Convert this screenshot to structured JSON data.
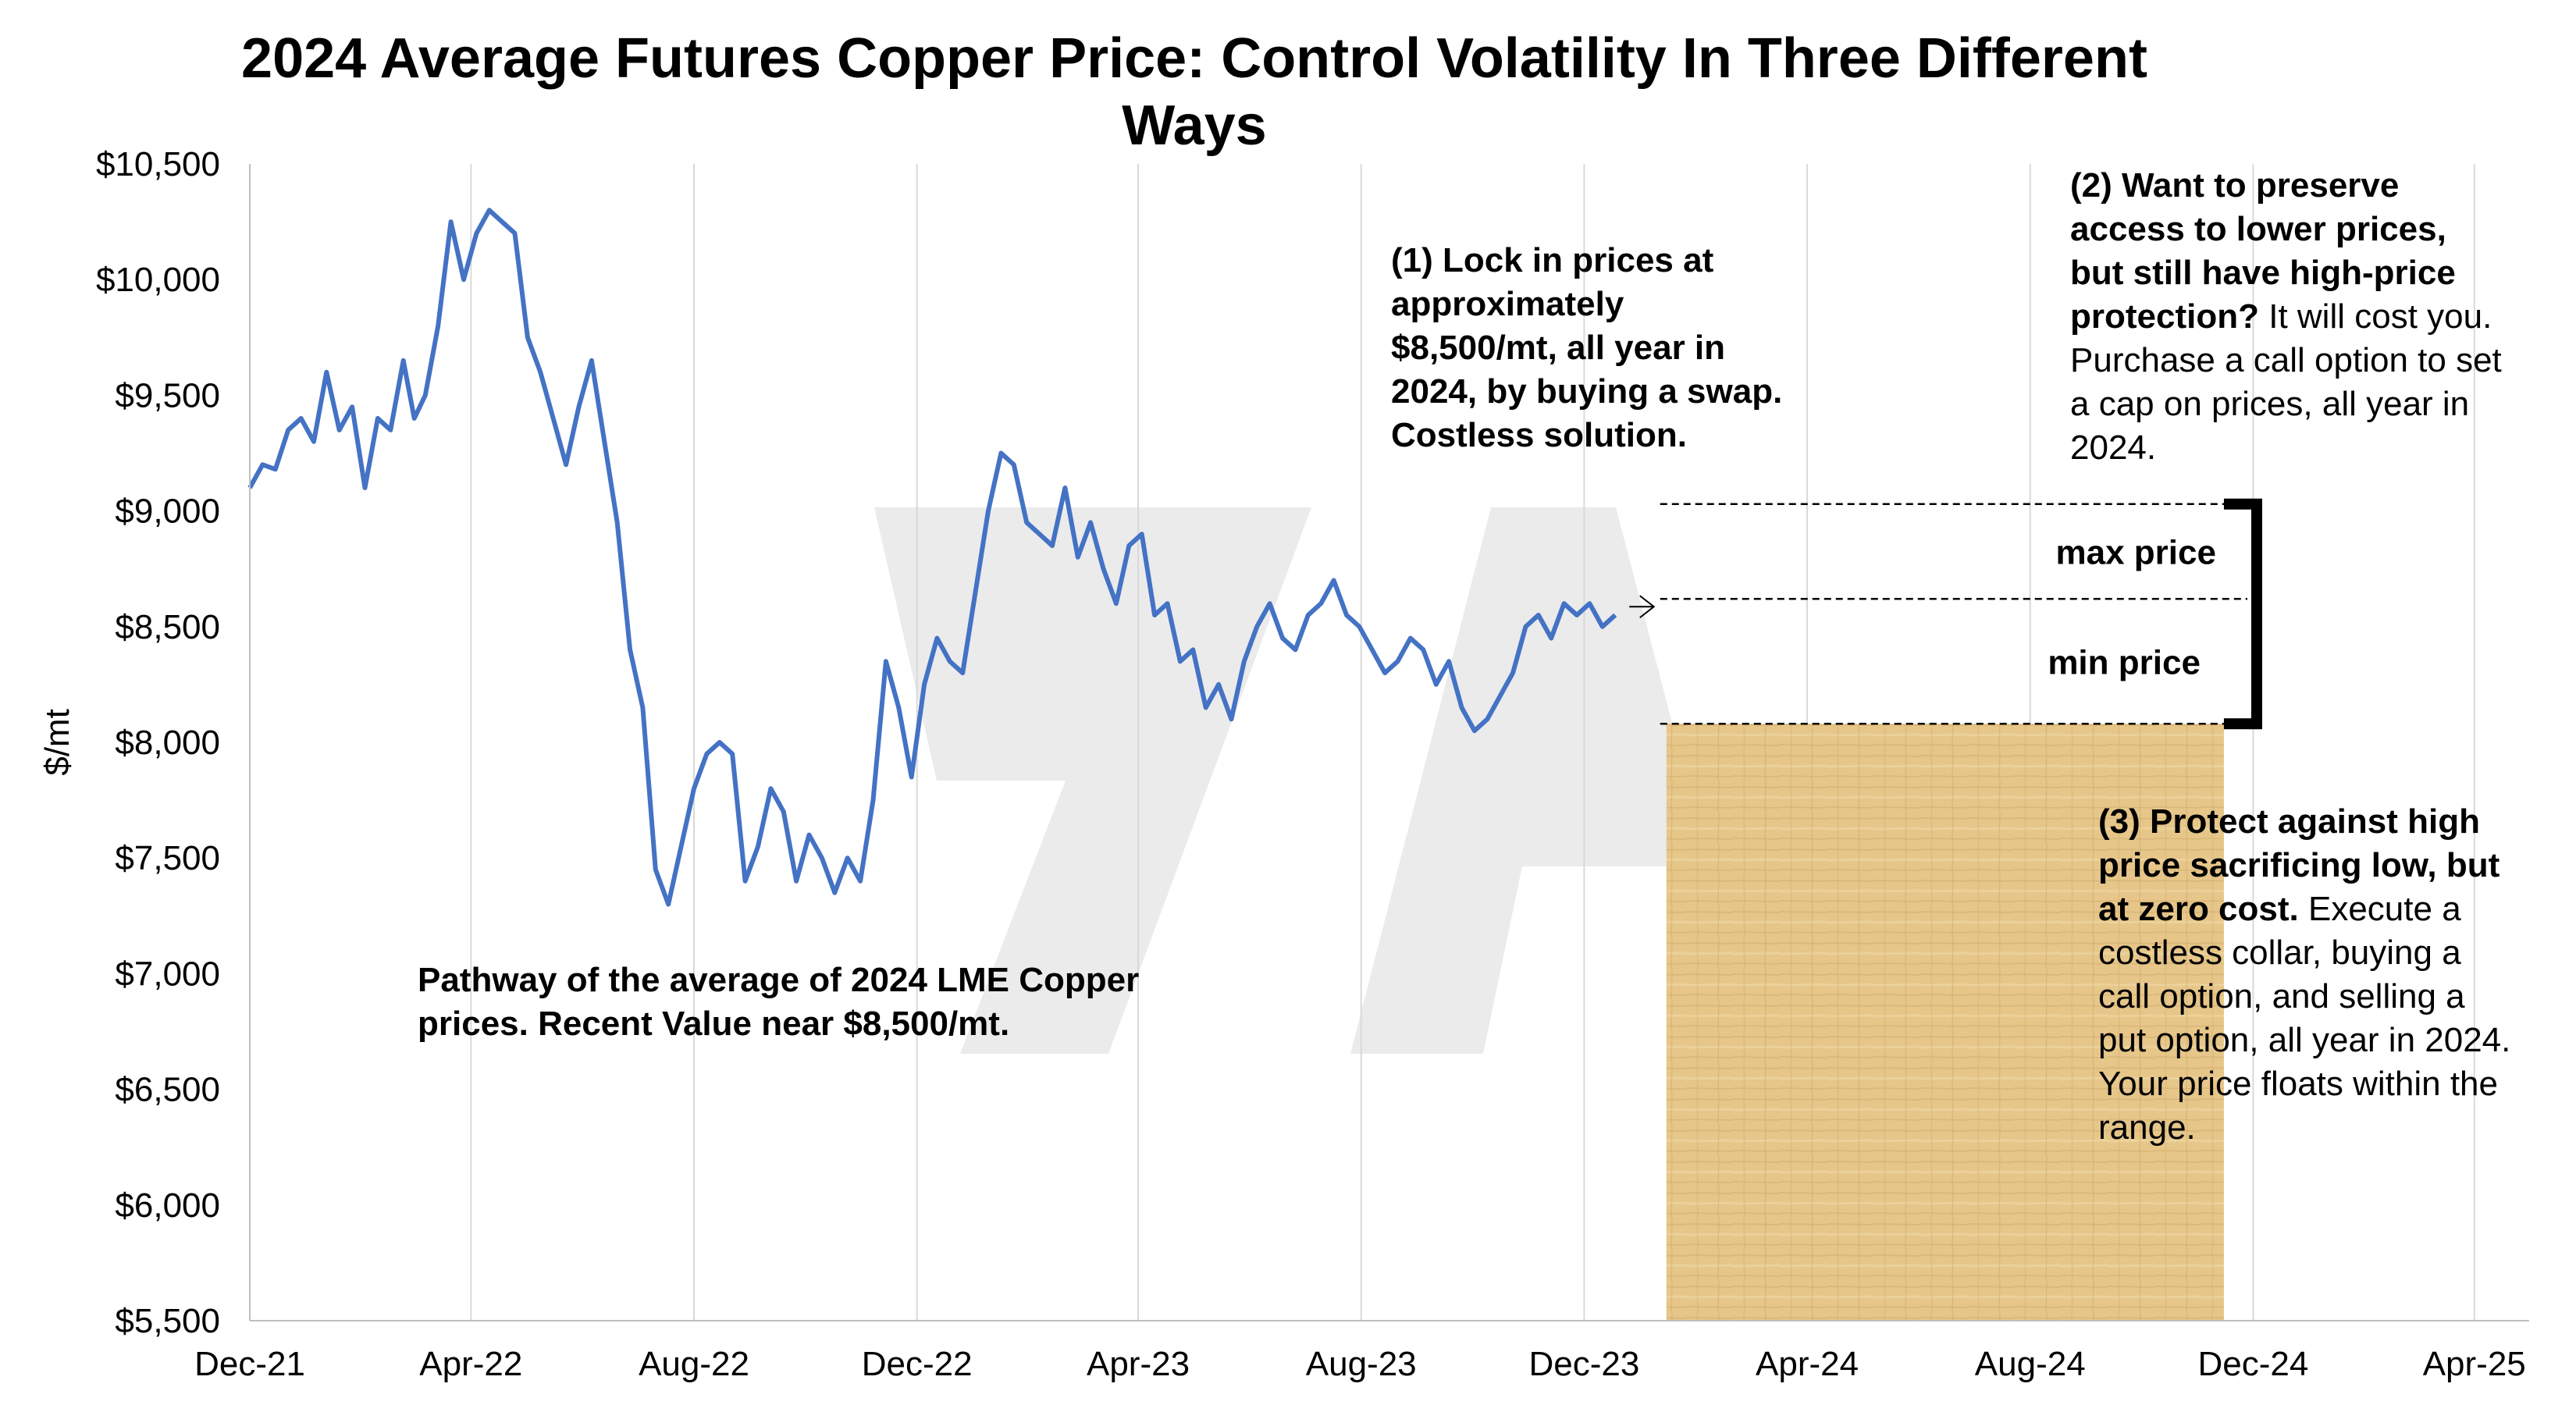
{
  "chart_data": {
    "type": "line",
    "title": "2024 Average Futures Copper Price: Control Volatility In Three Different Ways",
    "xlabel": "",
    "ylabel": "$/mt",
    "ylim": [
      5500,
      10500
    ],
    "yticks": [
      5500,
      6000,
      6500,
      7000,
      7500,
      8000,
      8500,
      9000,
      9500,
      10000,
      10500
    ],
    "ytick_labels": [
      "$5,500",
      "$6,000",
      "$6,500",
      "$7,000",
      "$7,500",
      "$8,000",
      "$8,500",
      "$9,000",
      "$9,500",
      "$10,000",
      "$10,500"
    ],
    "xlim": [
      "2021-12-01",
      "2025-05-01"
    ],
    "xticks": [
      "2021-12-01",
      "2022-04-01",
      "2022-08-01",
      "2022-12-01",
      "2023-04-01",
      "2023-08-01",
      "2023-12-01",
      "2024-04-01",
      "2024-08-01",
      "2024-12-01",
      "2025-04-01"
    ],
    "xtick_labels": [
      "Dec-21",
      "Apr-22",
      "Aug-22",
      "Dec-22",
      "Apr-23",
      "Aug-23",
      "Dec-23",
      "Apr-24",
      "Aug-24",
      "Dec-24",
      "Apr-25"
    ],
    "grid": "vertical",
    "series": [
      {
        "color": "#4472c4",
        "x": [
          "2021-12-01",
          "2021-12-08",
          "2021-12-15",
          "2021-12-22",
          "2021-12-29",
          "2022-01-05",
          "2022-01-12",
          "2022-01-19",
          "2022-01-26",
          "2022-02-02",
          "2022-02-09",
          "2022-02-16",
          "2022-02-23",
          "2022-03-01",
          "2022-03-07",
          "2022-03-14",
          "2022-03-21",
          "2022-03-28",
          "2022-04-04",
          "2022-04-11",
          "2022-04-18",
          "2022-04-25",
          "2022-05-02",
          "2022-05-09",
          "2022-05-16",
          "2022-05-23",
          "2022-05-30",
          "2022-06-06",
          "2022-06-13",
          "2022-06-20",
          "2022-06-27",
          "2022-07-04",
          "2022-07-11",
          "2022-07-18",
          "2022-07-25",
          "2022-08-01",
          "2022-08-08",
          "2022-08-15",
          "2022-08-22",
          "2022-08-29",
          "2022-09-05",
          "2022-09-12",
          "2022-09-19",
          "2022-09-26",
          "2022-10-03",
          "2022-10-10",
          "2022-10-17",
          "2022-10-24",
          "2022-10-31",
          "2022-11-07",
          "2022-11-14",
          "2022-11-21",
          "2022-11-28",
          "2022-12-05",
          "2022-12-12",
          "2022-12-19",
          "2022-12-26",
          "2023-01-02",
          "2023-01-09",
          "2023-01-16",
          "2023-01-23",
          "2023-01-30",
          "2023-02-06",
          "2023-02-13",
          "2023-02-20",
          "2023-02-27",
          "2023-03-06",
          "2023-03-13",
          "2023-03-20",
          "2023-03-27",
          "2023-04-03",
          "2023-04-10",
          "2023-04-17",
          "2023-04-24",
          "2023-05-01",
          "2023-05-08",
          "2023-05-15",
          "2023-05-22",
          "2023-05-29",
          "2023-06-05",
          "2023-06-12",
          "2023-06-19",
          "2023-06-26",
          "2023-07-03",
          "2023-07-10",
          "2023-07-17",
          "2023-07-24",
          "2023-07-31",
          "2023-08-07",
          "2023-08-14",
          "2023-08-21",
          "2023-08-28",
          "2023-09-04",
          "2023-09-11",
          "2023-09-18",
          "2023-09-25",
          "2023-10-02",
          "2023-10-09",
          "2023-10-16",
          "2023-10-23",
          "2023-10-30",
          "2023-11-06",
          "2023-11-13",
          "2023-11-20",
          "2023-11-27",
          "2023-12-04",
          "2023-12-11",
          "2023-12-18"
        ],
        "values": [
          9100,
          9200,
          9180,
          9350,
          9400,
          9300,
          9600,
          9350,
          9450,
          9100,
          9400,
          9350,
          9650,
          9400,
          9500,
          9800,
          10250,
          10000,
          10200,
          10300,
          10250,
          10200,
          9750,
          9600,
          9400,
          9200,
          9450,
          9650,
          9300,
          8950,
          8400,
          8150,
          7450,
          7300,
          7550,
          7800,
          7950,
          8000,
          7950,
          7400,
          7550,
          7800,
          7700,
          7400,
          7600,
          7500,
          7350,
          7500,
          7400,
          7750,
          8350,
          8150,
          7850,
          8250,
          8450,
          8350,
          8300,
          8650,
          9000,
          9250,
          9200,
          8950,
          8900,
          8850,
          9100,
          8800,
          8950,
          8750,
          8600,
          8850,
          8900,
          8550,
          8600,
          8350,
          8400,
          8150,
          8250,
          8100,
          8350,
          8500,
          8600,
          8450,
          8400,
          8550,
          8600,
          8700,
          8550,
          8500,
          8400,
          8300,
          8350,
          8450,
          8400,
          8250,
          8350,
          8150,
          8050,
          8100,
          8200,
          8300,
          8500,
          8550,
          8450,
          8600,
          8550,
          8600,
          8500,
          8550
        ]
      }
    ],
    "lines": {
      "max_price": 9030,
      "mid_price": 8620,
      "min_price": 8080,
      "x_start": "2024-01-15",
      "x_end": "2024-11-15"
    },
    "labels": {
      "max_price": "max price",
      "min_price": "min price"
    },
    "shade": {
      "x_start": "2024-01-15",
      "x_end": "2024-11-15",
      "y_low": 5500,
      "y_high": 8080,
      "color": "#e8c98a"
    },
    "annotations": {
      "note1": "(1) Lock in prices at approximately $8,500/mt, all year in 2024, by buying a swap. Costless solution.",
      "note2_bold": "(2) Want to preserve access to lower prices, but still have high-price protection?",
      "note2_rest": "It will cost you. Purchase a call option to set a cap on prices, all year in 2024.",
      "note3_bold": "(3) Protect against high price sacrificing low, but at zero cost.",
      "note3_rest": "Execute a costless collar, buying a call option, and selling a put option, all year in 2024. Your price floats within the range.",
      "pathway": "Pathway of the average of 2024 LME Copper prices.  Recent Value near $8,500/mt."
    }
  }
}
